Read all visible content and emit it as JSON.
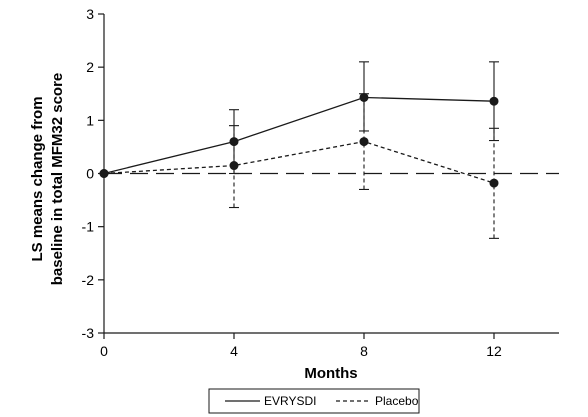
{
  "chart_data": {
    "type": "line",
    "title": "",
    "xlabel": "Months",
    "ylabel_lines": [
      "LS means change from",
      "baseline in total MFM32 score"
    ],
    "x": [
      0,
      4,
      8,
      12
    ],
    "xlim": [
      0,
      14
    ],
    "xticks": [
      0,
      4,
      8,
      12
    ],
    "ylim": [
      -3,
      3
    ],
    "yticks": [
      -3,
      -2,
      -1,
      0,
      1,
      2,
      3
    ],
    "reference_line_y": 0,
    "grid": false,
    "legend_position": "bottom-center",
    "series": [
      {
        "name": "EVRYSDI",
        "style": "solid",
        "values": [
          0,
          0.6,
          1.43,
          1.36
        ],
        "err_low": [
          0,
          0.0,
          0.8,
          0.62
        ],
        "err_high": [
          0,
          1.2,
          2.1,
          2.1
        ],
        "color": "#1a1a1a"
      },
      {
        "name": "Placebo",
        "style": "dashed",
        "values": [
          0,
          0.15,
          0.6,
          -0.18
        ],
        "err_low": [
          0,
          -0.64,
          -0.3,
          -1.22
        ],
        "err_high": [
          0,
          0.9,
          1.5,
          0.85
        ],
        "color": "#1a1a1a"
      }
    ]
  }
}
